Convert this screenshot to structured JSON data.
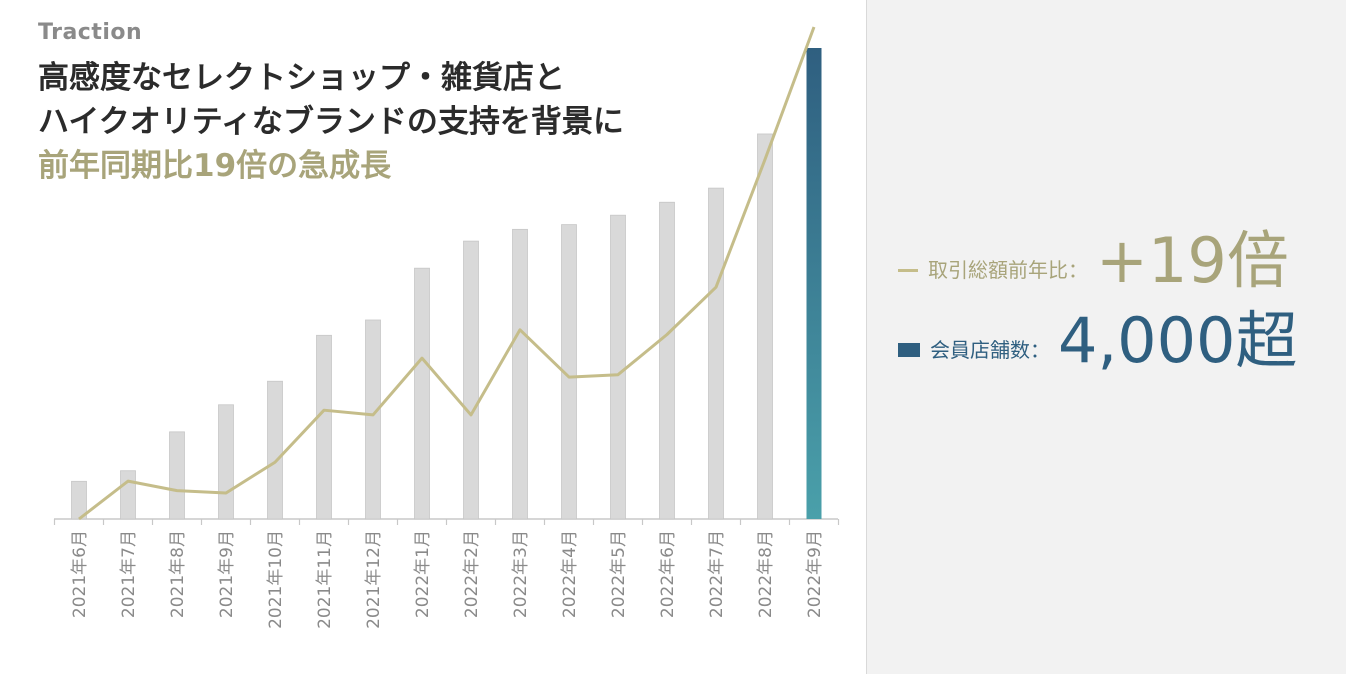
{
  "slide": {
    "label": "Traction",
    "headline_line1": "高感度なセレクトショップ・雑貨店と",
    "headline_line2": "ハイクオリティなブランドの支持を背景に",
    "headline_accent": "前年同期比19倍の急成長"
  },
  "legend": {
    "line_label": "取引総額前年比：",
    "line_value": "+19倍",
    "bar_label": "会員店舗数：",
    "bar_value": "4,000超"
  },
  "colors": {
    "bar": "#d9d9d9",
    "bar_highlight": "#2f5f80",
    "line": "#c5bd8a",
    "accent_text": "#a8a47a"
  },
  "chart_data": {
    "type": "bar",
    "categories": [
      "2021年6月",
      "2021年7月",
      "2021年8月",
      "2021年9月",
      "2021年10月",
      "2021年11月",
      "2021年12月",
      "2022年1月",
      "2022年2月",
      "2022年3月",
      "2022年4月",
      "2022年5月",
      "2022年6月",
      "2022年7月",
      "2022年8月",
      "2022年9月"
    ],
    "series": [
      {
        "name": "会員店舗数",
        "type": "bar",
        "values": [
          320,
          410,
          740,
          970,
          1170,
          1560,
          1690,
          2130,
          2360,
          2460,
          2500,
          2580,
          2690,
          2810,
          3270,
          4000
        ],
        "highlight_index": 15
      },
      {
        "name": "取引総額前年比",
        "type": "line",
        "values": [
          0,
          0.8,
          0.6,
          0.55,
          1.2,
          2.3,
          2.2,
          3.4,
          2.2,
          4.0,
          3.0,
          3.05,
          3.9,
          4.9,
          7.6,
          10.4
        ]
      }
    ],
    "ylim": [
      0,
      4000
    ],
    "y2lim": [
      0,
      10.4
    ],
    "axes_visible": false,
    "grid": false
  }
}
